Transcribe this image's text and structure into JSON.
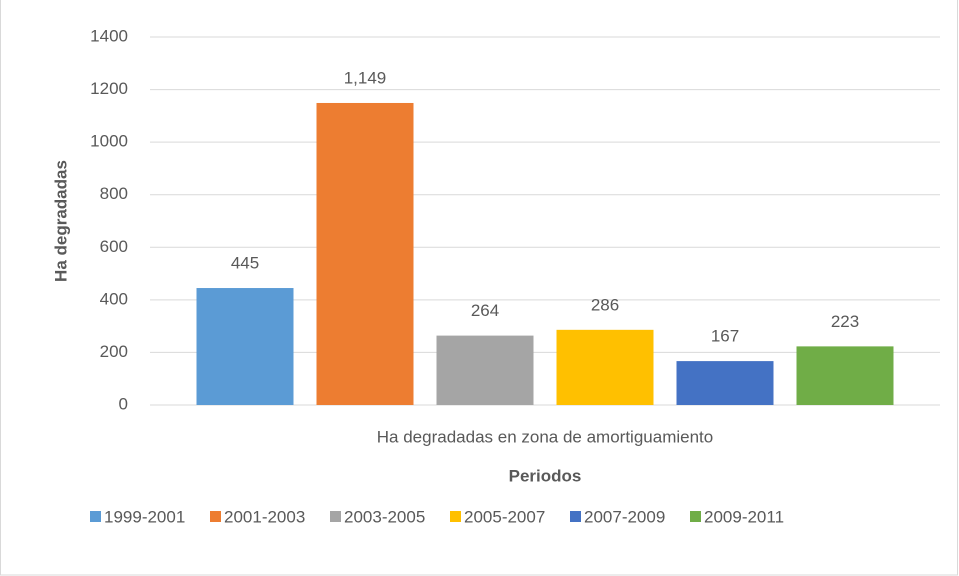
{
  "chart_data": {
    "type": "bar",
    "categories": [
      "Ha degradadas en zona de amortiguamiento"
    ],
    "series": [
      {
        "name": "1999-2001",
        "color": "#5b9bd5",
        "values": [
          445
        ]
      },
      {
        "name": "2001-2003",
        "color": "#ed7d31",
        "values": [
          1149
        ],
        "value_labels": [
          "1,149"
        ]
      },
      {
        "name": "2003-2005",
        "color": "#a5a5a5",
        "values": [
          264
        ]
      },
      {
        "name": "2005-2007",
        "color": "#ffc000",
        "values": [
          286
        ]
      },
      {
        "name": "2007-2009",
        "color": "#4472c4",
        "values": [
          167
        ]
      },
      {
        "name": "2009-2011",
        "color": "#70ad47",
        "values": [
          223
        ]
      }
    ],
    "ylabel": "Ha degradadas",
    "xlabel": "Periodos",
    "ylim": [
      0,
      1400
    ],
    "yticks": [
      0,
      200,
      400,
      600,
      800,
      1000,
      1200,
      1400
    ],
    "grid": true,
    "legend": "bottom"
  }
}
